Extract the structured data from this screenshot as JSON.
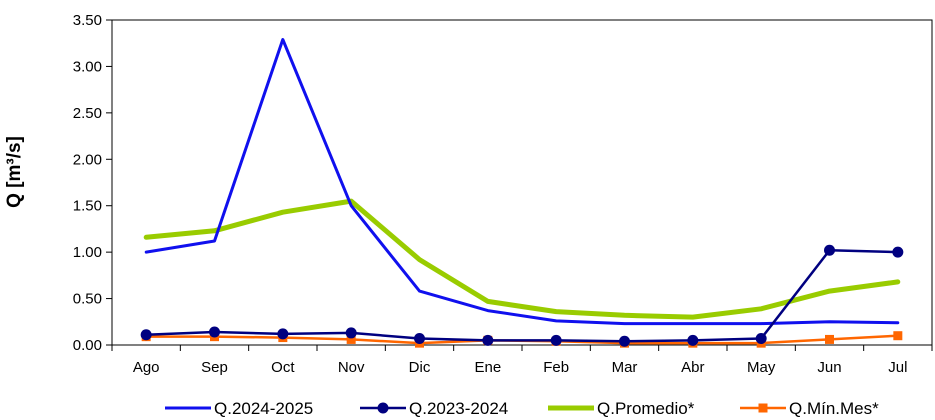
{
  "chart_data": {
    "type": "line",
    "ylabel": "Q [m³/s]",
    "xlabel": "",
    "title": "",
    "ylim": [
      0,
      3.5
    ],
    "yticks": [
      "0.00",
      "0.50",
      "1.00",
      "1.50",
      "2.00",
      "2.50",
      "3.00",
      "3.50"
    ],
    "categories": [
      "Ago",
      "Sep",
      "Oct",
      "Nov",
      "Dic",
      "Ene",
      "Feb",
      "Mar",
      "Abr",
      "May",
      "Jun",
      "Jul"
    ],
    "grid": false,
    "legend": "bottom",
    "series": [
      {
        "name": "Q.2024-2025",
        "color": "#1010ee",
        "marker": "none",
        "values": [
          1.0,
          1.12,
          3.29,
          1.5,
          0.58,
          0.37,
          0.26,
          0.23,
          0.23,
          0.23,
          0.25,
          0.24
        ]
      },
      {
        "name": "Q.2023-2024",
        "color": "#000080",
        "marker": "circle",
        "values": [
          0.11,
          0.14,
          0.12,
          0.13,
          0.07,
          0.05,
          0.05,
          0.04,
          0.05,
          0.07,
          1.02,
          1.0
        ]
      },
      {
        "name": "Q.Promedio*",
        "color": "#99cc00",
        "marker": "none",
        "values": [
          1.16,
          1.23,
          1.43,
          1.55,
          0.92,
          0.47,
          0.36,
          0.32,
          0.3,
          0.39,
          0.58,
          0.68
        ]
      },
      {
        "name": "Q.Mín.Mes*",
        "color": "#ff6600",
        "marker": "square",
        "values": [
          0.09,
          0.09,
          0.08,
          0.06,
          0.02,
          0.05,
          0.04,
          0.02,
          0.02,
          0.02,
          0.06,
          0.1
        ]
      }
    ]
  }
}
